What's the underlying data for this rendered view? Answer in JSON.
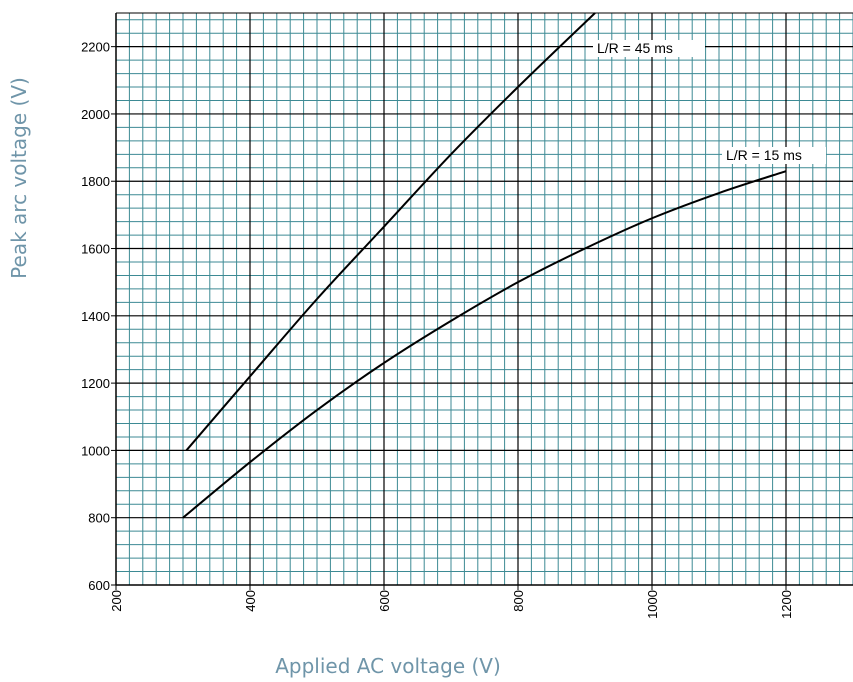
{
  "chart_data": {
    "type": "line",
    "title": "",
    "xlabel": "Applied AC voltage (V)",
    "ylabel": "Peak arc voltage (V)",
    "xlim": [
      200,
      1300
    ],
    "ylim": [
      600,
      2300
    ],
    "x_ticks": [
      "200",
      "400",
      "600",
      "800",
      "1000",
      "1200"
    ],
    "y_ticks": [
      "600",
      "800",
      "1000",
      "1200",
      "1400",
      "1600",
      "1800",
      "2000",
      "2200"
    ],
    "grid": true,
    "colors": {
      "minor_grid": "#3d8a94",
      "major_grid": "#000000",
      "axis_title": "#6f95a9",
      "line": "#000000"
    },
    "series": [
      {
        "name": "L/R = 45 ms",
        "points": [
          [
            305,
            1000
          ],
          [
            400,
            1220
          ],
          [
            500,
            1450
          ],
          [
            600,
            1665
          ],
          [
            700,
            1880
          ],
          [
            800,
            2080
          ],
          [
            915,
            2300
          ]
        ]
      },
      {
        "name": "L/R = 15 ms",
        "points": [
          [
            300,
            800
          ],
          [
            400,
            965
          ],
          [
            500,
            1120
          ],
          [
            600,
            1260
          ],
          [
            700,
            1385
          ],
          [
            800,
            1500
          ],
          [
            900,
            1600
          ],
          [
            1000,
            1690
          ],
          [
            1100,
            1765
          ],
          [
            1200,
            1830
          ]
        ]
      }
    ]
  }
}
